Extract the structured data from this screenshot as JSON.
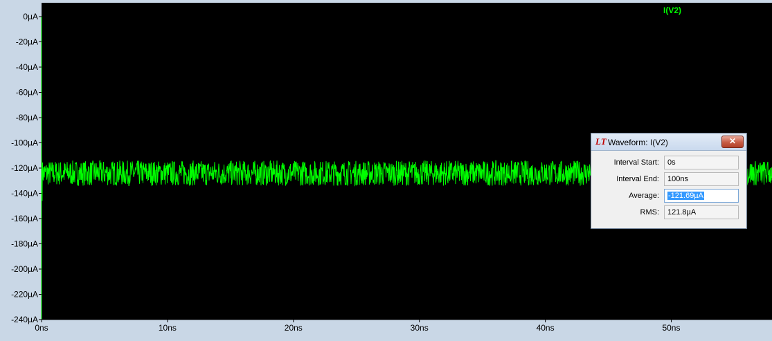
{
  "chart_data": {
    "type": "line",
    "trace_name": "I(V2)",
    "trace_color": "#00ff00",
    "background": "#000000",
    "x_unit": "ns",
    "y_unit": "µA",
    "xlim": [
      0,
      58
    ],
    "ylim": [
      -240,
      0
    ],
    "x_ticks": [
      0,
      10,
      20,
      30,
      40,
      50
    ],
    "x_tick_labels": [
      "0ns",
      "10ns",
      "20ns",
      "30ns",
      "40ns",
      "50ns"
    ],
    "y_ticks": [
      0,
      -20,
      -40,
      -60,
      -80,
      -100,
      -120,
      -140,
      -160,
      -180,
      -200,
      -220,
      -240
    ],
    "y_tick_labels": [
      "0µA",
      "-20µA",
      "-40µA",
      "-60µA",
      "-80µA",
      "-100µA",
      "-120µA",
      "-140µA",
      "-160µA",
      "-180µA",
      "-200µA",
      "-220µA",
      "-240µA"
    ],
    "signal": {
      "mean": -124,
      "min": -134,
      "max": -114,
      "start_spike": -146
    }
  },
  "dialog": {
    "title": "Waveform: I(V2)",
    "close_label": "✕",
    "logo_text": "LT",
    "fields": [
      {
        "label": "Interval Start:",
        "value": "0s"
      },
      {
        "label": "Interval End:",
        "value": "100ns"
      },
      {
        "label": "Average:",
        "value": "-121.69µA"
      },
      {
        "label": "RMS:",
        "value": "121.8µA"
      }
    ]
  }
}
